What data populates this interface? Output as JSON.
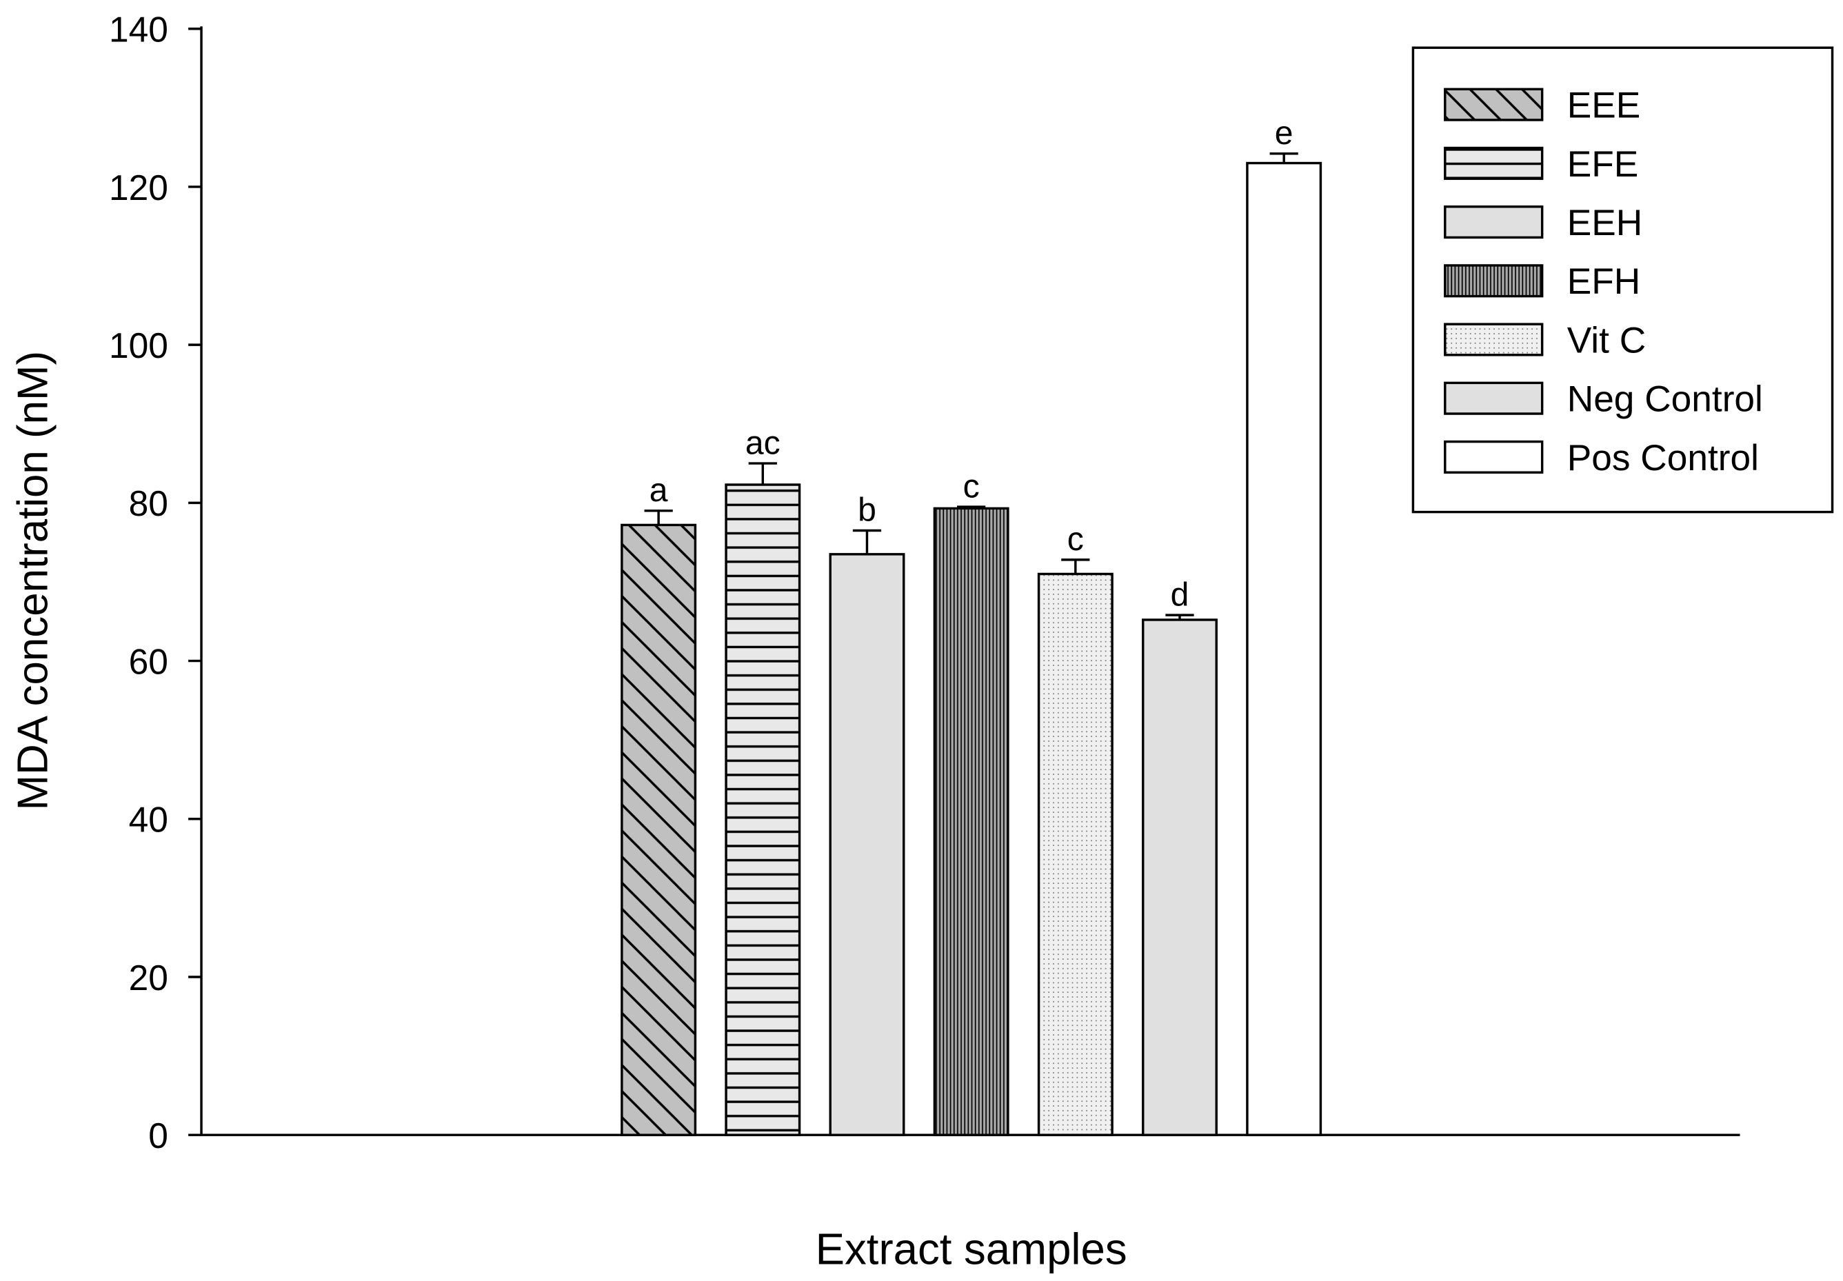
{
  "chart_data": {
    "type": "bar",
    "x_label": "Extract samples",
    "y_label": "MDA concentration (nM)",
    "ylim": [
      0,
      140
    ],
    "yticks": [
      0,
      20,
      40,
      60,
      80,
      100,
      120,
      140
    ],
    "legend": "top-right",
    "series": [
      {
        "name": "EEE",
        "color": "#c0c0c0",
        "pattern": "diagonal",
        "values": [
          77.2
        ],
        "errors": [
          1.8
        ],
        "letter": "a"
      },
      {
        "name": "EFE",
        "color": "#e8e8e8",
        "pattern": "horizontal",
        "values": [
          82.3
        ],
        "errors": [
          2.7
        ],
        "letter": "ac"
      },
      {
        "name": "EEH",
        "color": "#e0e0e0",
        "pattern": "solid",
        "values": [
          73.5
        ],
        "errors": [
          3.0
        ],
        "letter": "b"
      },
      {
        "name": "EFH",
        "color": "#a8a8a8",
        "pattern": "vertical",
        "values": [
          79.3
        ],
        "errors": [
          0.2
        ],
        "letter": "c"
      },
      {
        "name": "Vit C",
        "color": "#f0f0f0",
        "pattern": "dots",
        "values": [
          71.0
        ],
        "errors": [
          1.8
        ],
        "letter": "c"
      },
      {
        "name": "Neg Control",
        "color": "#e0e0e0",
        "pattern": "solid",
        "values": [
          65.2
        ],
        "errors": [
          0.6
        ],
        "letter": "d"
      },
      {
        "name": "Pos Control",
        "color": "#ffffff",
        "pattern": "solid",
        "values": [
          123.0
        ],
        "errors": [
          1.2
        ],
        "letter": "e"
      }
    ]
  }
}
